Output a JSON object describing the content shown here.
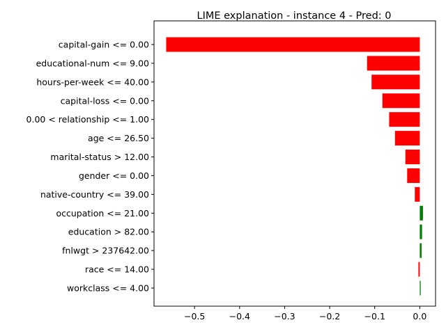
{
  "chart_data": {
    "type": "bar",
    "orientation": "horizontal",
    "title": "LIME explanation - instance 4 - Pred: 0",
    "xlabel": "",
    "ylabel": "",
    "xlim": [
      -0.59,
      0.035
    ],
    "xticks": [
      -0.5,
      -0.4,
      -0.3,
      -0.2,
      -0.1,
      0.0
    ],
    "xtick_labels": [
      "−0.5",
      "−0.4",
      "−0.3",
      "−0.2",
      "−0.1",
      "0.0"
    ],
    "grid": false,
    "legend": "none",
    "positive_color": "#008000",
    "negative_color": "#ff0000",
    "categories": [
      "capital-gain <= 0.00",
      "educational-num <= 9.00",
      "hours-per-week <= 40.00",
      "capital-loss <= 0.00",
      "0.00 < relationship <= 1.00",
      "age <= 26.50",
      "marital-status > 12.00",
      "gender <= 0.00",
      "native-country <= 39.00",
      "occupation <= 21.00",
      "education > 82.00",
      "fnlwgt > 237642.00",
      "race <= 14.00",
      "workclass <= 4.00"
    ],
    "values": [
      -0.563,
      -0.117,
      -0.107,
      -0.083,
      -0.068,
      -0.055,
      -0.032,
      -0.028,
      -0.011,
      0.007,
      0.005,
      0.004,
      -0.003,
      0.002
    ]
  }
}
